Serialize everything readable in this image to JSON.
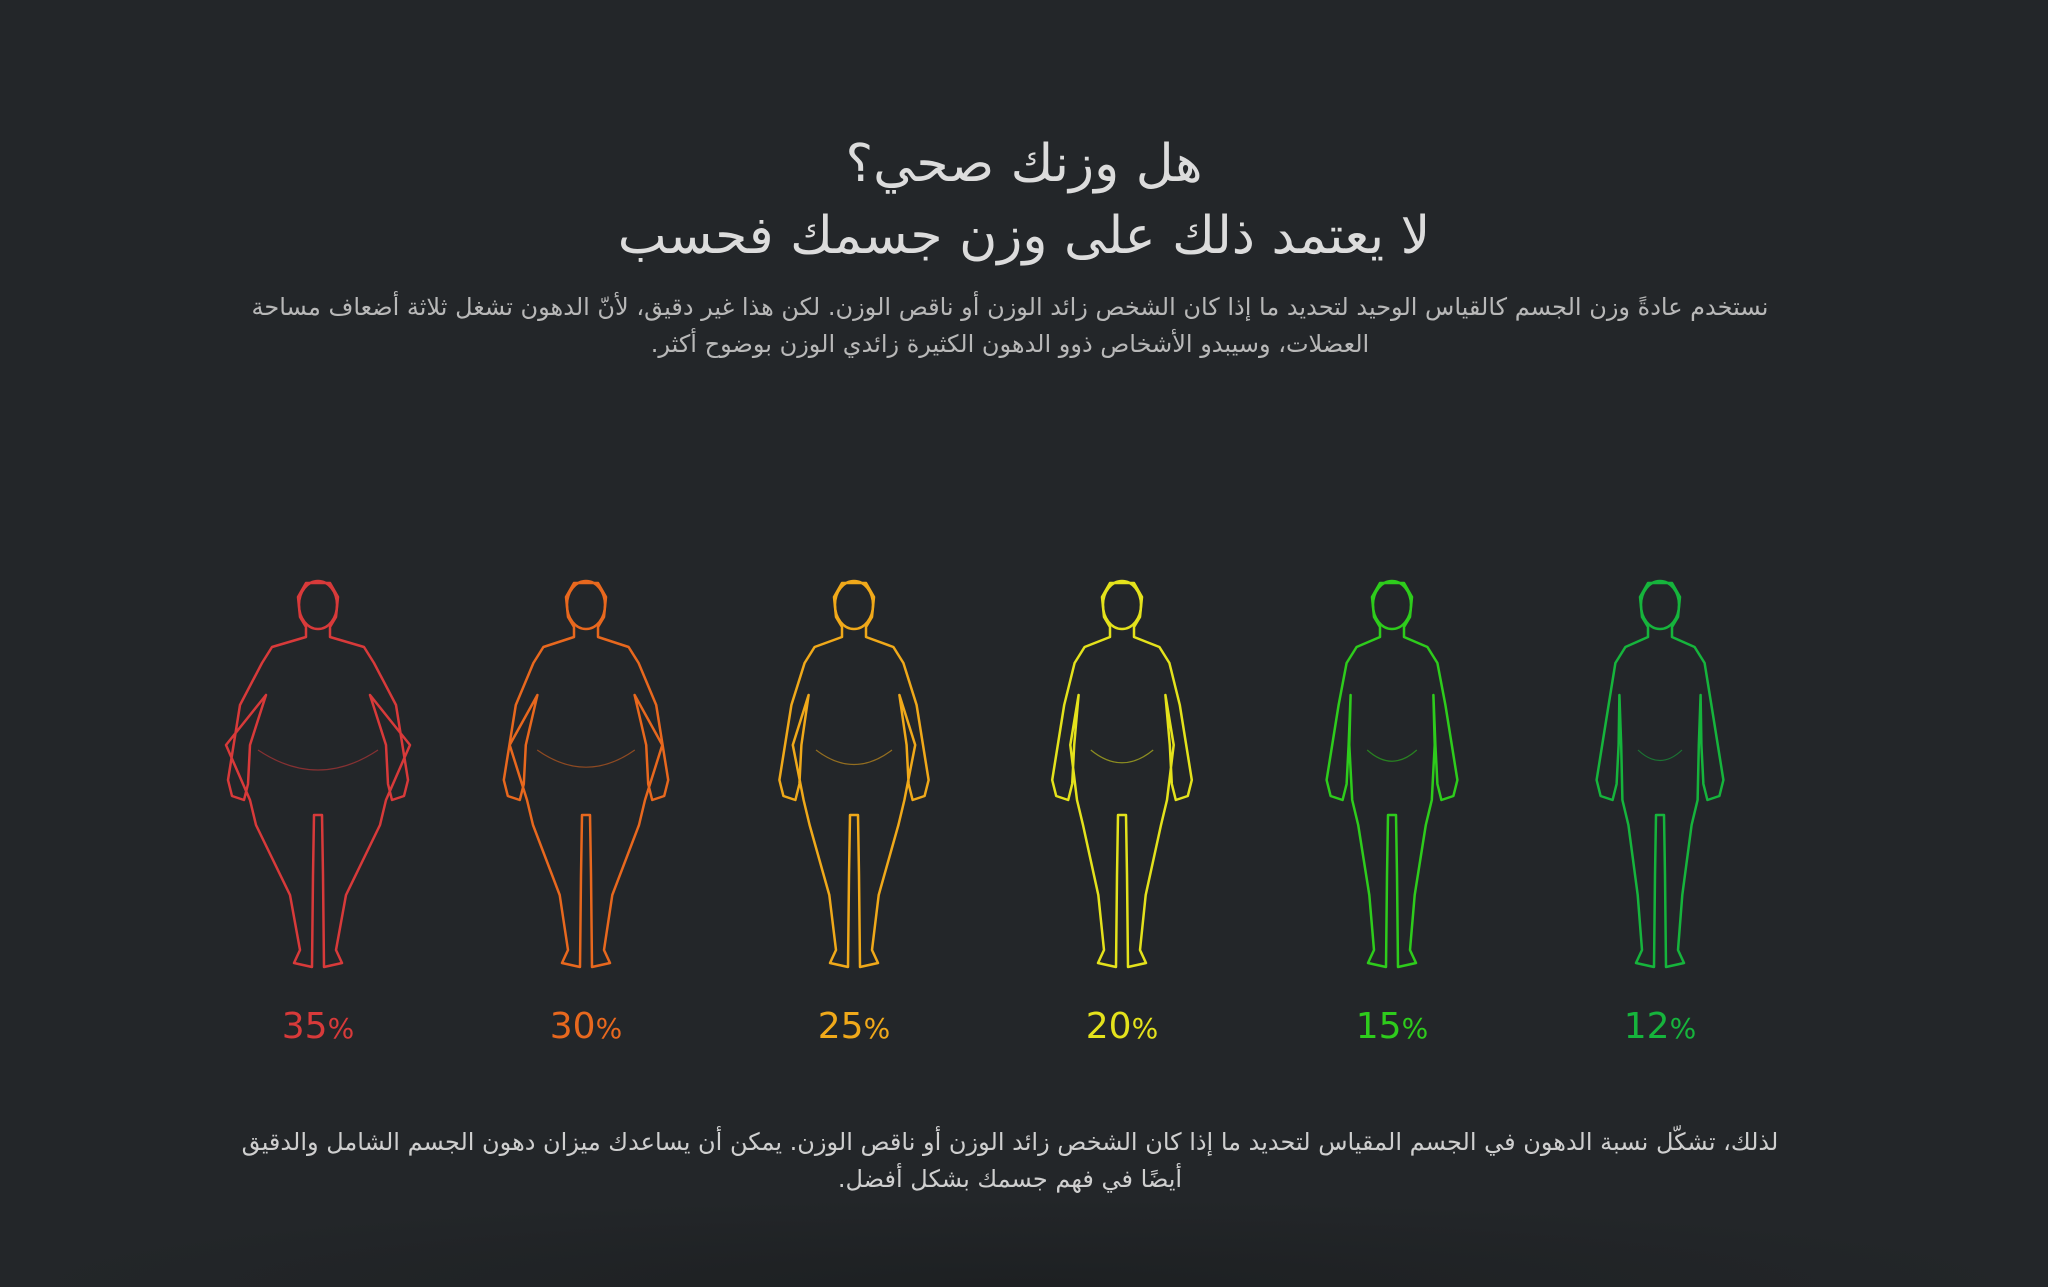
{
  "title": {
    "line1": "هل وزنك صحي؟",
    "line2": "لا يعتمد ذلك على وزن جسمك فحسب"
  },
  "intro": "نستخدم عادةً وزن الجسم كالقياس الوحيد لتحديد ما إذا كان الشخص زائد الوزن أو ناقص الوزن. لكن هذا غير دقيق، لأنّ الدهون تشغل ثلاثة أضعاف مساحة العضلات، وسيبدو الأشخاص ذوو الدهون الكثيرة زائدي الوزن بوضوح أكثر.",
  "figures": [
    {
      "value": "35",
      "unit": "%",
      "color": "#d83a3a",
      "fat": 1.0
    },
    {
      "value": "30",
      "unit": "%",
      "color": "#e8681e",
      "fat": 0.72
    },
    {
      "value": "25",
      "unit": "%",
      "color": "#f0a91a",
      "fat": 0.45
    },
    {
      "value": "20",
      "unit": "%",
      "color": "#e4e21c",
      "fat": 0.28
    },
    {
      "value": "15",
      "unit": "%",
      "color": "#2ecc1c",
      "fat": 0.12
    },
    {
      "value": "12",
      "unit": "%",
      "color": "#16b43c",
      "fat": 0.05
    }
  ],
  "icons": [
    "body-silhouette-icon"
  ],
  "conclusion": "لذلك، تشكّل نسبة الدهون في الجسم المقياس لتحديد ما إذا كان الشخص زائد الوزن أو ناقص الوزن. يمكن أن يساعدك ميزان دهون الجسم الشامل والدقيق أيضًا في فهم جسمك بشكل أفضل."
}
